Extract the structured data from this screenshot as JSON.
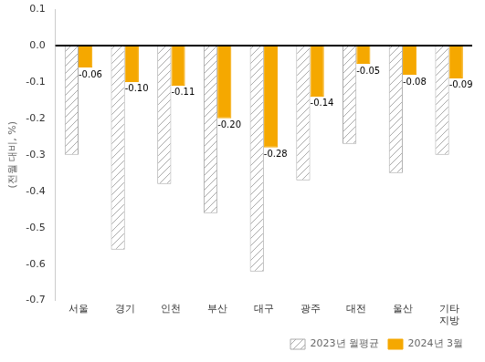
{
  "chart_data": {
    "type": "bar",
    "categories": [
      "서울",
      "경기",
      "인천",
      "부산",
      "대구",
      "광주",
      "대전",
      "울산",
      "기타\n지방"
    ],
    "ylabel": "(전월 대비, %)",
    "series": [
      {
        "name": "2023년 월평균",
        "color": "#aaaaaa",
        "values": [
          -0.3,
          -0.56,
          -0.38,
          -0.46,
          -0.62,
          -0.37,
          -0.27,
          -0.35,
          -0.3
        ]
      },
      {
        "name": "2024년 3월",
        "color": "#F5A800",
        "values": [
          -0.06,
          -0.1,
          -0.11,
          -0.2,
          -0.28,
          -0.14,
          -0.05,
          -0.08,
          -0.09
        ],
        "data_labels": true,
        "value_labels": [
          "-0.06",
          "-0.10",
          "-0.11",
          "-0.20",
          "-0.28",
          "-0.14",
          "-0.05",
          "-0.08",
          "-0.09"
        ]
      }
    ],
    "ylim": [
      -0.7,
      0.1
    ],
    "yticks": [
      0.1,
      {
        "value": 0,
        "label": "0.0"
      },
      -0.1,
      -0.2,
      -0.3,
      -0.4,
      -0.5,
      -0.6,
      -0.7
    ],
    "grid": false,
    "legend": "lower right"
  }
}
